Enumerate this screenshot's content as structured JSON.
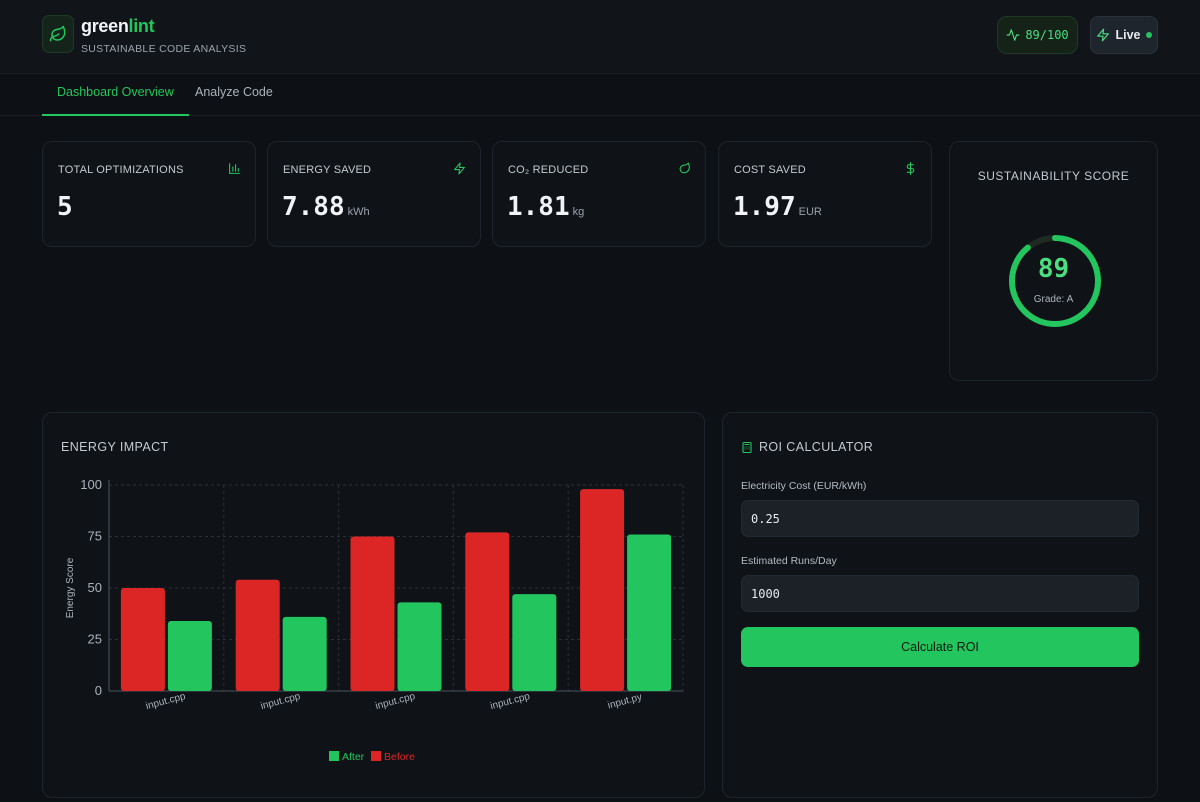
{
  "app": {
    "name_part1": "green",
    "name_part2": "lint",
    "tagline": "SUSTAINABLE CODE ANALYSIS",
    "score_badge": "89/100",
    "live_label": "Live",
    "logo_icon": "leaf-icon"
  },
  "tabs": [
    {
      "label": "Dashboard Overview",
      "active": true
    },
    {
      "label": "Analyze Code",
      "active": false
    }
  ],
  "stats": [
    {
      "label": "TOTAL OPTIMIZATIONS",
      "value": "5",
      "unit": "",
      "icon": "bar-chart-icon"
    },
    {
      "label": "ENERGY SAVED",
      "value": "7.88",
      "unit": "kWh",
      "icon": "lightning-icon"
    },
    {
      "label": "CO₂ REDUCED",
      "value": "1.81",
      "unit": "kg",
      "icon": "leaf-icon"
    },
    {
      "label": "COST SAVED",
      "value": "1.97",
      "unit": "EUR",
      "icon": "dollar-icon"
    }
  ],
  "sustainability": {
    "title": "SUSTAINABILITY SCORE",
    "score": "89",
    "max": 100,
    "grade": "Grade: A"
  },
  "energy_impact": {
    "title": "ENERGY IMPACT"
  },
  "roi": {
    "title": "ROI CALCULATOR",
    "icon": "calculator-icon",
    "cost_label": "Electricity Cost (EUR/kWh)",
    "cost_value": "0.25",
    "runs_label": "Estimated Runs/Day",
    "runs_value": "1000",
    "button_label": "Calculate ROI"
  },
  "colors": {
    "accent": "#22c55e",
    "before": "#dc2626",
    "after": "#22c55e",
    "background": "#0d1014",
    "card": "#0f1317"
  },
  "chart_data": {
    "type": "bar",
    "categories": [
      "input.cpp",
      "input.cpp",
      "input.cpp",
      "input.cpp",
      "input.py"
    ],
    "series": [
      {
        "name": "Before",
        "values": [
          50,
          54,
          75,
          77,
          98
        ]
      },
      {
        "name": "After",
        "values": [
          34,
          36,
          43,
          47,
          76
        ]
      }
    ],
    "ylabel": "Energy Score",
    "ylim": [
      0,
      100
    ],
    "yticks": [
      "0",
      "25",
      "50",
      "75",
      "100"
    ],
    "legend": [
      "After",
      "Before"
    ],
    "legend_position": "bottom",
    "grid": true
  }
}
